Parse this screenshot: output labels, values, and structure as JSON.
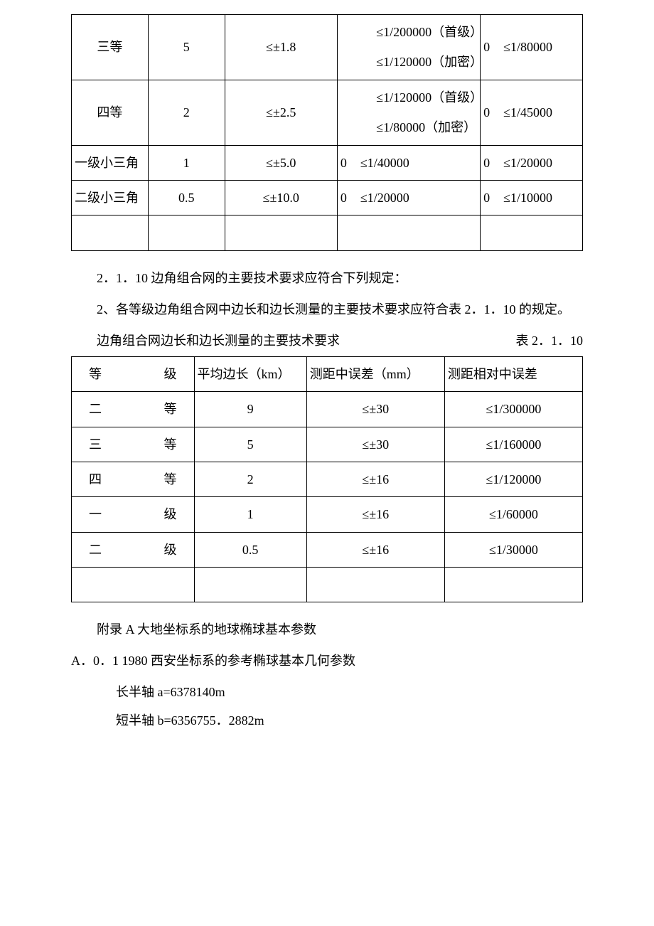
{
  "table1": {
    "rows": [
      {
        "label": "三等",
        "avg_len": "5",
        "mid_err": "≤±1.8",
        "rel_mid_a": "≤1/200000（首级）",
        "rel_mid_b": "≤1/120000（加密）",
        "weak_pad": "0",
        "weak_val": "≤1/80000"
      },
      {
        "label": "四等",
        "avg_len": "2",
        "mid_err": "≤±2.5",
        "rel_mid_a": "≤1/120000（首级）",
        "rel_mid_b": "≤1/80000（加密）",
        "weak_pad": "0",
        "weak_val": "≤1/45000"
      },
      {
        "label": "一级小三角",
        "avg_len": "1",
        "mid_err": "≤±5.0",
        "rel_mid_pad": "0",
        "rel_mid_val": "≤1/40000",
        "weak_pad": "0",
        "weak_val": "≤1/20000"
      },
      {
        "label": "二级小三角",
        "avg_len": "0.5",
        "mid_err": "≤±10.0",
        "rel_mid_pad": "0",
        "rel_mid_val": "≤1/20000",
        "weak_pad": "0",
        "weak_val": "≤1/10000"
      }
    ]
  },
  "texts": {
    "p1": "2．1．10 边角组合网的主要技术要求应符合下列规定：",
    "p2": "2、各等级边角组合网中边长和边长测量的主要技术要求应符合表 2．1．10 的规定。",
    "caption_left": "边角组合网边长和边长测量的主要技术要求",
    "caption_right": "表 2．1．10",
    "appendix_title": "附录 A 大地坐标系的地球椭球基本参数",
    "a01": "A．0．1 1980 西安坐标系的参考椭球基本几何参数",
    "a_long": "长半轴 a=6378140m",
    "a_short": "短半轴 b=6356755．2882m"
  },
  "table2": {
    "header": {
      "c1a": "等",
      "c1b": "级",
      "c2": "平均边长（km）",
      "c3": "测距中误差（mm）",
      "c4": "测距相对中误差"
    },
    "rows": [
      {
        "la": "二",
        "lb": "等",
        "v2": "9",
        "v3": "≤±30",
        "v4": "≤1/300000"
      },
      {
        "la": "三",
        "lb": "等",
        "v2": "5",
        "v3": "≤±30",
        "v4": "≤1/160000"
      },
      {
        "la": "四",
        "lb": "等",
        "v2": "2",
        "v3": "≤±16",
        "v4": "≤1/120000"
      },
      {
        "la": "一",
        "lb": "级",
        "v2": "1",
        "v3": "≤±16",
        "v4": "≤1/60000"
      },
      {
        "la": "二",
        "lb": "级",
        "v2": "0.5",
        "v3": "≤±16",
        "v4": "≤1/30000"
      }
    ]
  }
}
